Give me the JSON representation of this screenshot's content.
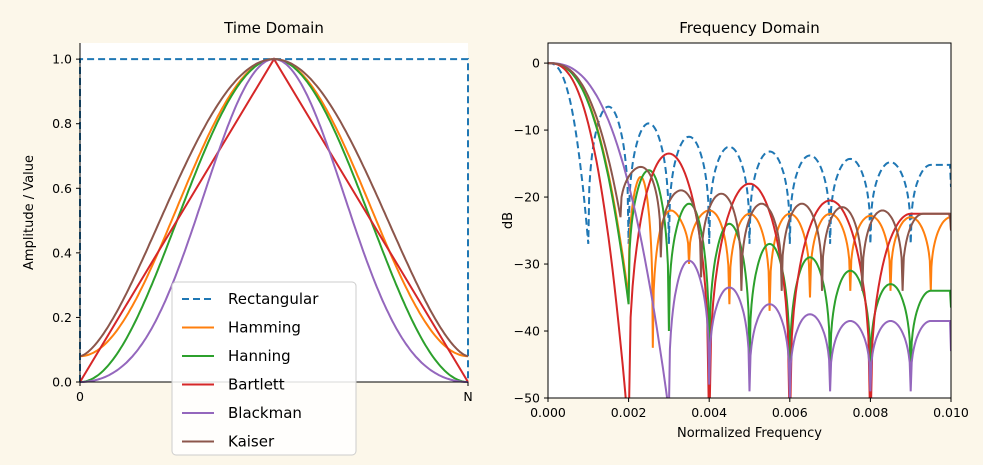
{
  "chart_data": [
    {
      "type": "line",
      "title": "Time Domain",
      "xlabel": "",
      "ylabel": "Amplitude / Value",
      "xlim": [
        0,
        1
      ],
      "ylim": [
        0,
        1.05
      ],
      "x_ticks": [
        {
          "value": 0,
          "label": "0"
        },
        {
          "value": 0.5,
          "label": ""
        },
        {
          "value": 1,
          "label": "N"
        }
      ],
      "y_ticks": [
        0.0,
        0.2,
        0.4,
        0.6,
        0.8,
        1.0
      ],
      "y_tick_labels": [
        "0.0",
        "0.2",
        "0.4",
        "0.6",
        "0.8",
        "1.0"
      ],
      "grid": false,
      "legend": "lower-center",
      "series": [
        {
          "name": "Rectangular",
          "color": "#1f77b4",
          "dash": "dashed",
          "x": [
            0,
            0,
            1,
            1
          ],
          "y": [
            0,
            1,
            1,
            0
          ]
        },
        {
          "name": "Hamming",
          "color": "#ff7f0e",
          "x": [
            0,
            0.1,
            0.2,
            0.3,
            0.4,
            0.5,
            0.6,
            0.7,
            0.8,
            0.9,
            1.0
          ],
          "y": [
            0.08,
            0.17,
            0.4,
            0.68,
            0.91,
            1.0,
            0.91,
            0.68,
            0.4,
            0.17,
            0.08
          ]
        },
        {
          "name": "Hanning",
          "color": "#2ca02c",
          "x": [
            0,
            0.1,
            0.2,
            0.3,
            0.4,
            0.5,
            0.6,
            0.7,
            0.8,
            0.9,
            1.0
          ],
          "y": [
            0.0,
            0.1,
            0.35,
            0.65,
            0.9,
            1.0,
            0.9,
            0.65,
            0.35,
            0.1,
            0.0
          ]
        },
        {
          "name": "Bartlett",
          "color": "#d62728",
          "x": [
            0,
            0.5,
            1
          ],
          "y": [
            0,
            1,
            0
          ]
        },
        {
          "name": "Blackman",
          "color": "#9467bd",
          "x": [
            0,
            0.1,
            0.2,
            0.3,
            0.4,
            0.5,
            0.6,
            0.7,
            0.8,
            0.9,
            1.0
          ],
          "y": [
            0.0,
            0.04,
            0.2,
            0.51,
            0.85,
            1.0,
            0.85,
            0.51,
            0.2,
            0.04,
            0.0
          ]
        },
        {
          "name": "Kaiser",
          "color": "#8c564b",
          "x": [
            0,
            0.1,
            0.2,
            0.3,
            0.4,
            0.5,
            0.6,
            0.7,
            0.8,
            0.9,
            1.0
          ],
          "y": [
            0.08,
            0.26,
            0.52,
            0.77,
            0.94,
            1.0,
            0.94,
            0.77,
            0.52,
            0.26,
            0.08
          ]
        }
      ]
    },
    {
      "type": "line",
      "title": "Frequency Domain",
      "xlabel": "Normalized Frequency",
      "ylabel": "dB",
      "xlim": [
        0,
        0.01
      ],
      "ylim": [
        -50,
        3
      ],
      "x_ticks": [
        0,
        0.002,
        0.004,
        0.006,
        0.008,
        0.01
      ],
      "x_tick_labels": [
        "0.000",
        "0.002",
        "0.004",
        "0.006",
        "0.008",
        "0.010"
      ],
      "y_ticks": [
        -50,
        -40,
        -30,
        -20,
        -10,
        0
      ],
      "y_tick_labels": [
        "−50",
        "−40",
        "−30",
        "−20",
        "−10",
        "0"
      ],
      "grid": false,
      "series": [
        {
          "name": "Rectangular",
          "color": "#1f77b4",
          "dash": "dashed",
          "nulls": [
            0.001,
            0.002,
            0.003,
            0.004,
            0.005,
            0.006,
            0.007,
            0.008,
            0.009
          ],
          "null_depths": [
            -27,
            -27,
            -27,
            -27,
            -27,
            -27,
            -27,
            -27,
            -27
          ],
          "lobe_peaks": [
            -6.5,
            -9,
            -11,
            -12.5,
            -13.2,
            -13.8,
            -14.3,
            -14.8,
            -15.2
          ],
          "tail_end": -18.5
        },
        {
          "name": "Hamming",
          "color": "#ff7f0e",
          "nulls": [
            0.002,
            0.0026,
            0.0035,
            0.0045,
            0.0055,
            0.0065,
            0.0075,
            0.0085,
            0.0095
          ],
          "null_depths": [
            -35,
            -42.5,
            -30,
            -36,
            -37,
            -35,
            -34,
            -34,
            -34
          ],
          "lobe_peaks": [
            -17,
            -22,
            -22,
            -22.5,
            -22.5,
            -22.5,
            -22.8,
            -23
          ],
          "tail_end": -25
        },
        {
          "name": "Hanning",
          "color": "#2ca02c",
          "nulls": [
            0.002,
            0.003,
            0.004,
            0.005,
            0.006,
            0.007,
            0.008,
            0.009
          ],
          "null_depths": [
            -36,
            -40,
            -46,
            -46,
            -48,
            -47,
            -47,
            -47
          ],
          "lobe_peaks": [
            -16,
            -21,
            -24,
            -27,
            -29,
            -31,
            -33,
            -34
          ],
          "tail_end": -36.5
        },
        {
          "name": "Bartlett",
          "color": "#d62728",
          "nulls": [
            0.002,
            0.004,
            0.006,
            0.008
          ],
          "null_depths": [
            -55,
            -55,
            -55,
            -55
          ],
          "lobe_peaks": [
            -13.5,
            -18,
            -20.5,
            -22.5
          ],
          "tail_end": -23.5
        },
        {
          "name": "Blackman",
          "color": "#9467bd",
          "nulls": [
            0.003,
            0.004,
            0.005,
            0.006,
            0.007,
            0.008,
            0.009
          ],
          "null_depths": [
            -52,
            -48,
            -49,
            -50,
            -49,
            -49,
            -49
          ],
          "lobe_peaks": [
            -29.5,
            -33.5,
            -36,
            -37.5,
            -38.5,
            -38.5
          ],
          "tail_end": -43
        },
        {
          "name": "Kaiser",
          "color": "#8c564b",
          "nulls": [
            0.0018,
            0.0028,
            0.0038,
            0.0048,
            0.0058,
            0.0068,
            0.0078,
            0.0088
          ],
          "null_depths": [
            -23,
            -29,
            -32,
            -34,
            -34,
            -34,
            -34,
            -34
          ],
          "lobe_peaks": [
            -15.5,
            -19,
            -19.5,
            -21,
            -21,
            -21.5,
            -22,
            -22.5
          ],
          "tail_end": -25
        }
      ]
    }
  ]
}
